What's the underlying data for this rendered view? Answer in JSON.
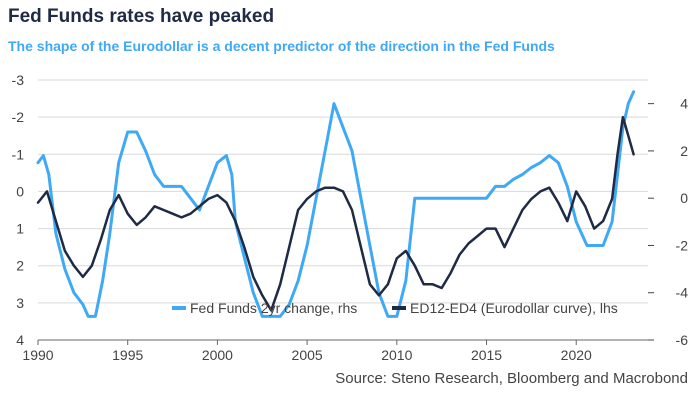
{
  "title": "Fed Funds rates have peaked",
  "subtitle": "The shape of the Eurodollar is a decent predictor of the direction in the Fed Funds",
  "source": "Source: Steno Research, Bloomberg and Macrobond",
  "chart_data": {
    "type": "line",
    "left_axis": {
      "ticks": [
        -3,
        -2,
        -1,
        0,
        1,
        2,
        3,
        4
      ],
      "ylim": [
        -3,
        4
      ],
      "inverted": true,
      "label": "lhs"
    },
    "right_axis": {
      "ticks": [
        4,
        2,
        0,
        -2,
        -4,
        -6
      ],
      "ylim": [
        -6,
        5
      ],
      "label": "rhs"
    },
    "x_axis": {
      "ticks": [
        1990,
        1995,
        2000,
        2005,
        2010,
        2015,
        2020
      ],
      "xlim": [
        1990,
        2024
      ]
    },
    "legend": {
      "placement": "bottom-right"
    },
    "grid": "horizontal",
    "series": [
      {
        "name": "Fed Funds 2yr change, rhs",
        "axis": "right",
        "color": "#3fa9f5",
        "x": [
          1990.0,
          1990.3,
          1990.6,
          1991.0,
          1991.5,
          1992.0,
          1992.5,
          1992.8,
          1993.2,
          1993.6,
          1994.0,
          1994.5,
          1995.0,
          1995.5,
          1996.0,
          1996.5,
          1997.0,
          1997.5,
          1998.0,
          1998.5,
          1999.0,
          1999.5,
          2000.0,
          2000.5,
          2000.8,
          2001.0,
          2001.5,
          2002.0,
          2002.5,
          2003.0,
          2003.5,
          2004.0,
          2004.5,
          2005.0,
          2005.5,
          2006.0,
          2006.5,
          2007.0,
          2007.5,
          2008.0,
          2008.5,
          2009.0,
          2009.5,
          2010.0,
          2010.5,
          2011.0,
          2012.0,
          2013.0,
          2014.0,
          2015.0,
          2015.5,
          2016.0,
          2016.5,
          2017.0,
          2017.5,
          2018.0,
          2018.5,
          2019.0,
          2019.5,
          2020.0,
          2020.3,
          2020.6,
          2021.0,
          2021.5,
          2022.0,
          2022.3,
          2022.6,
          2022.9,
          2023.2
        ],
        "values": [
          1.5,
          1.8,
          1.0,
          -1.5,
          -3.0,
          -4.0,
          -4.5,
          -5.0,
          -5.0,
          -3.5,
          -1.5,
          1.5,
          2.8,
          2.8,
          2.0,
          1.0,
          0.5,
          0.5,
          0.5,
          0.0,
          -0.5,
          0.5,
          1.5,
          1.8,
          1.0,
          -1.0,
          -2.5,
          -4.0,
          -5.0,
          -5.0,
          -5.0,
          -4.5,
          -3.5,
          -2.0,
          0.0,
          2.0,
          4.0,
          3.0,
          2.0,
          0.0,
          -2.0,
          -4.0,
          -5.0,
          -5.0,
          -3.5,
          0.0,
          0.0,
          0.0,
          0.0,
          0.0,
          0.5,
          0.5,
          0.8,
          1.0,
          1.3,
          1.5,
          1.8,
          1.5,
          0.5,
          -1.0,
          -1.5,
          -2.0,
          -2.0,
          -2.0,
          -1.0,
          1.0,
          3.0,
          4.0,
          4.5
        ]
      },
      {
        "name": "ED12-ED4 (Eurodollar curve), lhs",
        "axis": "left",
        "color": "#1f2a44",
        "x": [
          1990.0,
          1990.5,
          1991.0,
          1991.5,
          1992.0,
          1992.5,
          1993.0,
          1993.5,
          1994.0,
          1994.5,
          1995.0,
          1995.5,
          1996.0,
          1996.5,
          1997.0,
          1997.5,
          1998.0,
          1998.5,
          1999.0,
          1999.5,
          2000.0,
          2000.5,
          2001.0,
          2001.5,
          2002.0,
          2002.5,
          2003.0,
          2003.5,
          2004.0,
          2004.5,
          2005.0,
          2005.5,
          2006.0,
          2006.5,
          2007.0,
          2007.5,
          2008.0,
          2008.5,
          2009.0,
          2009.5,
          2010.0,
          2010.5,
          2011.0,
          2011.5,
          2012.0,
          2012.5,
          2013.0,
          2013.5,
          2014.0,
          2014.5,
          2015.0,
          2015.5,
          2016.0,
          2016.5,
          2017.0,
          2017.5,
          2018.0,
          2018.5,
          2019.0,
          2019.5,
          2020.0,
          2020.5,
          2021.0,
          2021.5,
          2022.0,
          2022.3,
          2022.6,
          2022.9,
          2023.2
        ],
        "values": [
          0.3,
          0.0,
          0.8,
          1.6,
          2.0,
          2.3,
          2.0,
          1.3,
          0.5,
          0.1,
          0.6,
          0.9,
          0.7,
          0.4,
          0.5,
          0.6,
          0.7,
          0.6,
          0.4,
          0.2,
          0.1,
          0.3,
          0.8,
          1.5,
          2.3,
          2.8,
          3.2,
          2.5,
          1.5,
          0.5,
          0.2,
          0.0,
          -0.1,
          -0.1,
          0.0,
          0.5,
          1.5,
          2.5,
          2.8,
          2.5,
          1.8,
          1.6,
          2.0,
          2.5,
          2.5,
          2.6,
          2.2,
          1.7,
          1.4,
          1.2,
          1.0,
          1.0,
          1.5,
          1.0,
          0.5,
          0.2,
          0.0,
          -0.1,
          0.3,
          0.8,
          0.0,
          0.4,
          1.0,
          0.8,
          0.2,
          -1.0,
          -2.0,
          -1.5,
          -1.0
        ]
      }
    ]
  }
}
